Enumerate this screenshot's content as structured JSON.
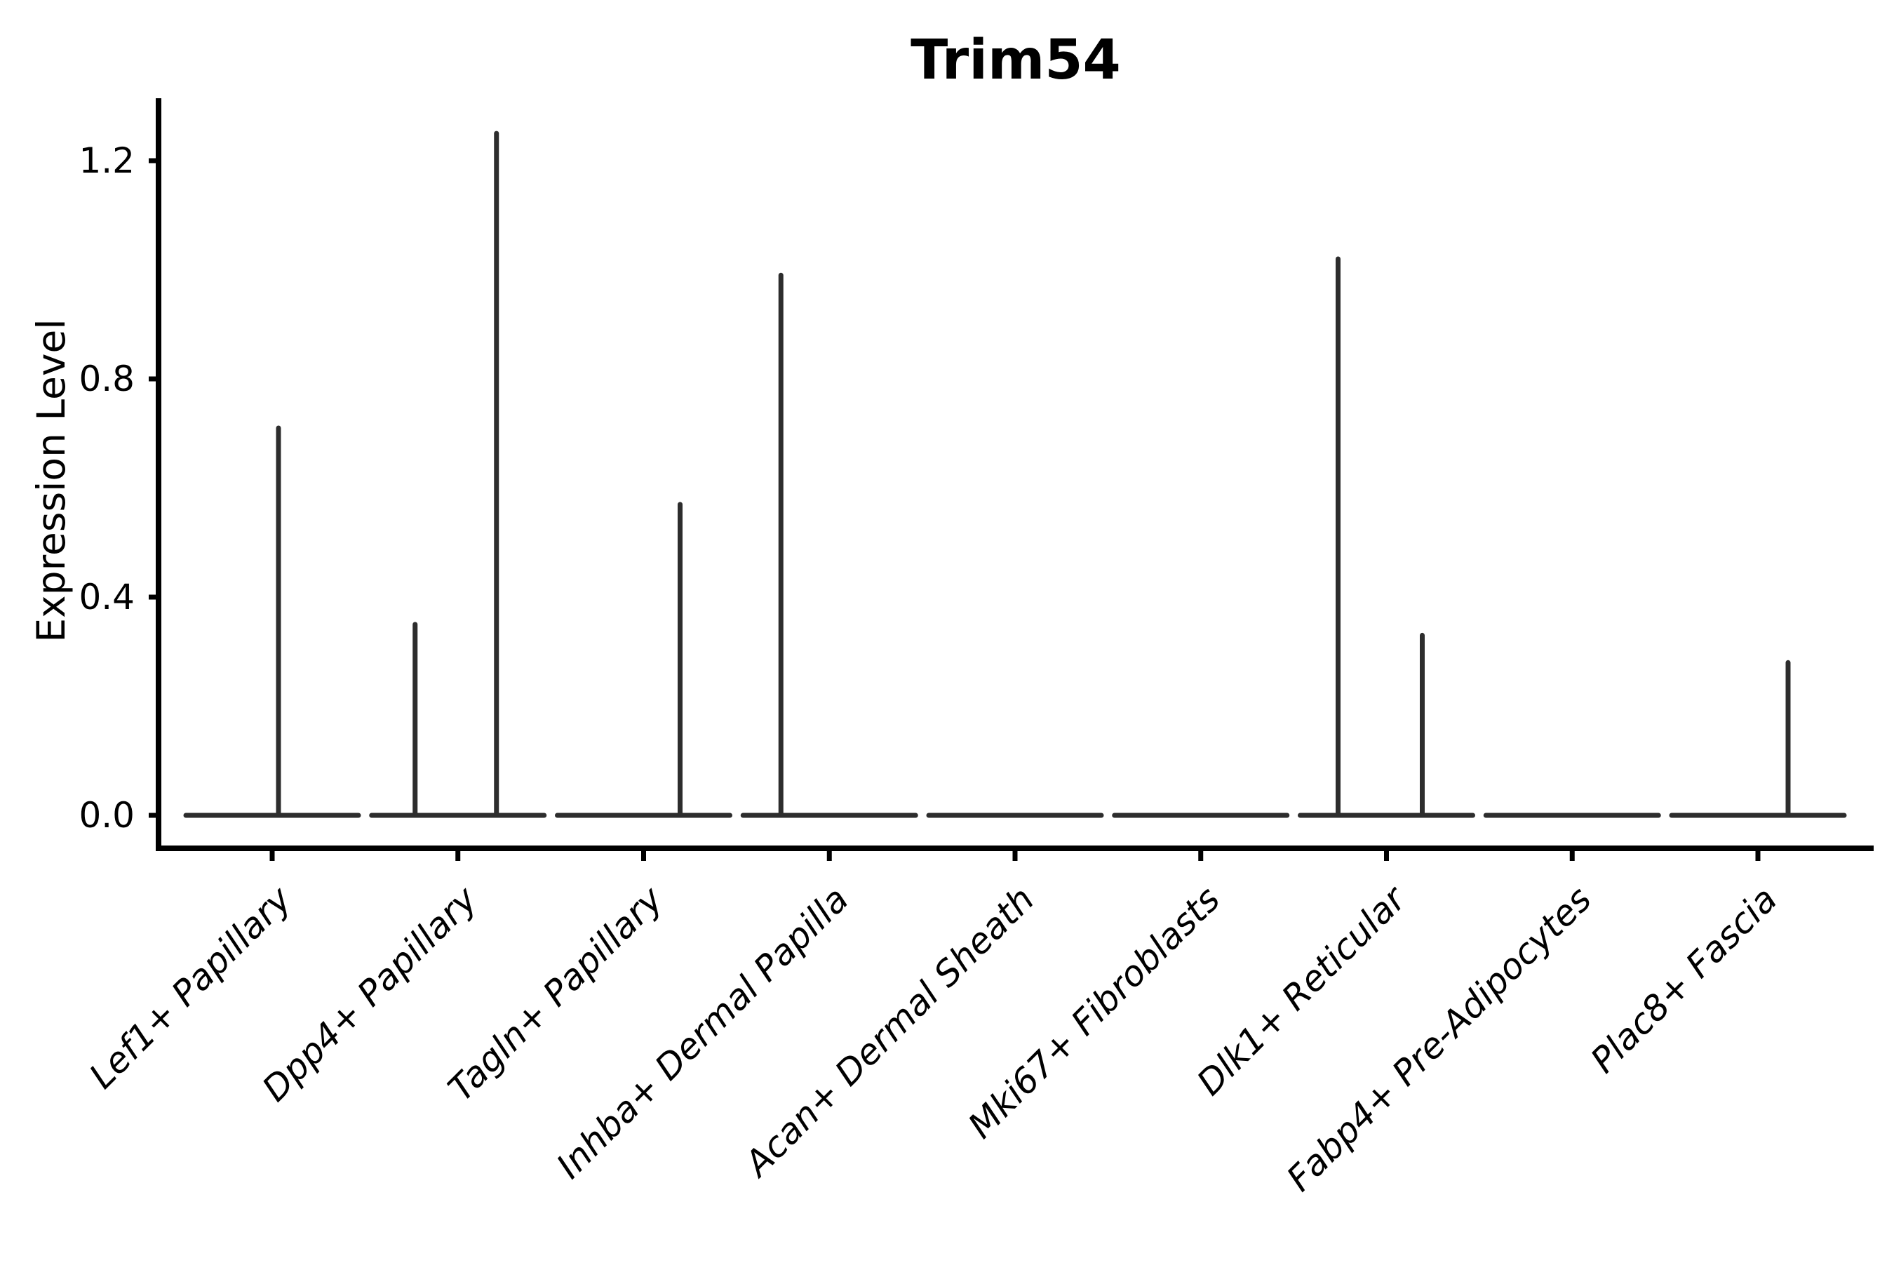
{
  "chart_data": {
    "type": "violin",
    "title": "Trim54",
    "xlabel": "",
    "ylabel": "Expression Level",
    "ylim": [
      -0.06,
      1.29
    ],
    "yticks": [
      0.0,
      0.4,
      0.8,
      1.2
    ],
    "ytick_labels": [
      "0.0",
      "0.4",
      "0.8",
      "1.2"
    ],
    "grid": false,
    "legend": null,
    "baseline_value": 0.0,
    "categories": [
      {
        "label": "Lef1+ Papillary",
        "spikes": [
          {
            "dx": 9,
            "value": 0.71
          }
        ]
      },
      {
        "label": "Dpp4+ Papillary",
        "spikes": [
          {
            "dx": -61,
            "value": 0.35
          },
          {
            "dx": 55,
            "value": 1.25
          }
        ]
      },
      {
        "label": "Tagln+ Papillary",
        "spikes": [
          {
            "dx": 52,
            "value": 0.57
          }
        ]
      },
      {
        "label": "Inhba+ Dermal Papilla",
        "spikes": [
          {
            "dx": -69,
            "value": 0.99
          }
        ]
      },
      {
        "label": "Acan+ Dermal Sheath",
        "spikes": []
      },
      {
        "label": "Mki67+ Fibroblasts",
        "spikes": []
      },
      {
        "label": "Dlk1+ Reticular",
        "spikes": [
          {
            "dx": -69,
            "value": 1.02
          },
          {
            "dx": 51,
            "value": 0.33
          }
        ]
      },
      {
        "label": "Fabp4+ Pre-Adipocytes",
        "spikes": []
      },
      {
        "label": "Plac8+ Fascia",
        "spikes": [
          {
            "dx": 43,
            "value": 0.28
          }
        ]
      }
    ]
  },
  "colors": {
    "violin_stroke": "#2d2d2d",
    "axis": "#000000",
    "text": "#000000",
    "background": "#ffffff"
  }
}
